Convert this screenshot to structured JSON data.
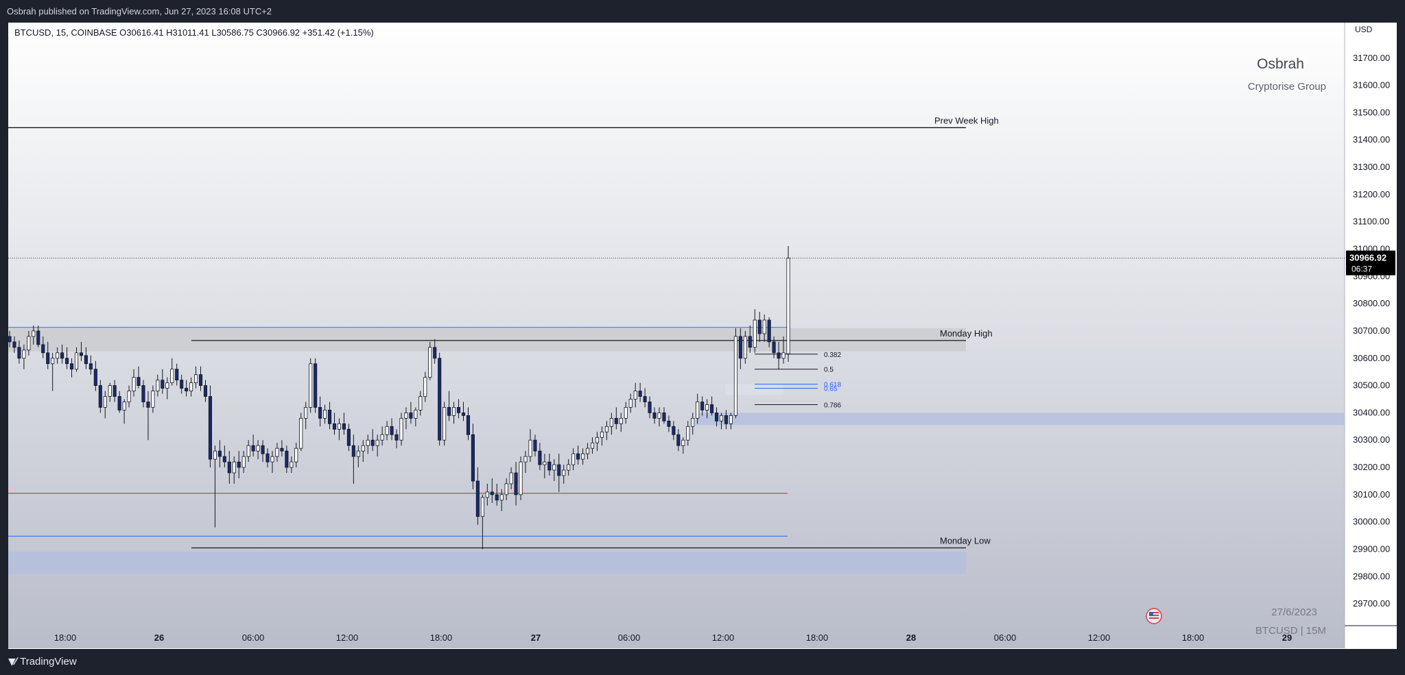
{
  "header": {
    "published": "Osbrah published on TradingView.com, Jun 27, 2023 16:08 UTC+2"
  },
  "footer": {
    "brand": "TradingView",
    "logo_icon": "tradingview-logo-icon"
  },
  "legend": {
    "ohlc": "BTCUSD, 15, COINBASE  O30616.41  H31011.41  L30586.75  C30966.92  +351.42 (+1.15%)"
  },
  "watermark": {
    "author": "Osbrah",
    "group": "Cryptorise Group",
    "date": "27/6/2023",
    "symbol": "BTCUSD | 15M"
  },
  "chart_data": {
    "type": "candlestick",
    "symbol": "BTCUSD",
    "interval": "15",
    "exchange": "COINBASE",
    "currency": "USD",
    "ylim": [
      29620,
      31830
    ],
    "y_ticks": [
      29700,
      29800,
      29900,
      30000,
      30100,
      30200,
      30300,
      30400,
      30500,
      30600,
      30700,
      30800,
      30900,
      31000,
      31100,
      31200,
      31300,
      31400,
      31500,
      31600,
      31700
    ],
    "x_ticks": [
      "18:00",
      "26",
      "06:00",
      "12:00",
      "18:00",
      "27",
      "06:00",
      "12:00",
      "18:00",
      "28",
      "06:00",
      "12:00",
      "18:00",
      "29"
    ],
    "last_price": {
      "value": "30966.92",
      "countdown": "06:37"
    },
    "horizontal_levels": [
      {
        "label": "Prev Week High",
        "price": 31445,
        "color": "#131722"
      },
      {
        "label": "Monday High",
        "price": 30665,
        "color": "#131722"
      },
      {
        "label": "Monday Low",
        "price": 29905,
        "color": "#131722"
      },
      {
        "label": "",
        "price": 30713,
        "color": "#2962ff"
      },
      {
        "label": "",
        "price": 29948,
        "color": "#2962ff"
      },
      {
        "label": "",
        "price": 30105,
        "color": "#b22833"
      }
    ],
    "zones": [
      {
        "top": 30710,
        "bottom": 30625,
        "color": "#c8c9cc"
      },
      {
        "top": 30400,
        "bottom": 30355,
        "color": "#b2bde0"
      },
      {
        "top": 29890,
        "bottom": 29810,
        "color": "#b2bde0"
      },
      {
        "top": 30505,
        "bottom": 30465,
        "color": "#dde0ea"
      }
    ],
    "fibonacci": [
      {
        "label": "0.382",
        "price": 30615
      },
      {
        "label": "0.5",
        "price": 30560
      },
      {
        "label": "0.618",
        "price": 30505
      },
      {
        "label": "0.65",
        "price": 30490
      },
      {
        "label": "0.786",
        "price": 30430
      }
    ],
    "ohlc_series": [
      [
        30680,
        30700,
        30640,
        30660
      ],
      [
        30660,
        30680,
        30620,
        30640
      ],
      [
        30640,
        30665,
        30580,
        30600
      ],
      [
        30600,
        30650,
        30560,
        30630
      ],
      [
        30630,
        30700,
        30610,
        30680
      ],
      [
        30680,
        30720,
        30650,
        30700
      ],
      [
        30700,
        30720,
        30640,
        30650
      ],
      [
        30650,
        30680,
        30600,
        30620
      ],
      [
        30620,
        30660,
        30560,
        30580
      ],
      [
        30580,
        30620,
        30480,
        30600
      ],
      [
        30600,
        30640,
        30580,
        30620
      ],
      [
        30620,
        30650,
        30580,
        30600
      ],
      [
        30600,
        30640,
        30560,
        30580
      ],
      [
        30580,
        30600,
        30530,
        30560
      ],
      [
        30560,
        30640,
        30550,
        30620
      ],
      [
        30620,
        30660,
        30590,
        30610
      ],
      [
        30610,
        30640,
        30560,
        30580
      ],
      [
        30580,
        30610,
        30540,
        30560
      ],
      [
        30560,
        30590,
        30480,
        30500
      ],
      [
        30500,
        30520,
        30400,
        30420
      ],
      [
        30420,
        30480,
        30380,
        30460
      ],
      [
        30460,
        30510,
        30440,
        30500
      ],
      [
        30500,
        30520,
        30440,
        30460
      ],
      [
        30460,
        30480,
        30400,
        30410
      ],
      [
        30410,
        30450,
        30360,
        30440
      ],
      [
        30440,
        30500,
        30420,
        30480
      ],
      [
        30480,
        30560,
        30460,
        30530
      ],
      [
        30530,
        30570,
        30490,
        30500
      ],
      [
        30500,
        30520,
        30420,
        30440
      ],
      [
        30440,
        30480,
        30300,
        30420
      ],
      [
        30420,
        30500,
        30400,
        30480
      ],
      [
        30480,
        30540,
        30460,
        30520
      ],
      [
        30520,
        30560,
        30470,
        30490
      ],
      [
        30490,
        30530,
        30450,
        30510
      ],
      [
        30510,
        30600,
        30500,
        30560
      ],
      [
        30560,
        30580,
        30500,
        30520
      ],
      [
        30520,
        30540,
        30470,
        30490
      ],
      [
        30490,
        30520,
        30460,
        30480
      ],
      [
        30480,
        30530,
        30460,
        30510
      ],
      [
        30510,
        30570,
        30490,
        30540
      ],
      [
        30540,
        30570,
        30480,
        30500
      ],
      [
        30500,
        30520,
        30440,
        30460
      ],
      [
        30460,
        30500,
        30200,
        30230
      ],
      [
        30230,
        30280,
        29980,
        30260
      ],
      [
        30260,
        30300,
        30200,
        30240
      ],
      [
        30240,
        30280,
        30200,
        30220
      ],
      [
        30220,
        30260,
        30140,
        30180
      ],
      [
        30180,
        30240,
        30140,
        30220
      ],
      [
        30220,
        30260,
        30160,
        30200
      ],
      [
        30200,
        30260,
        30180,
        30240
      ],
      [
        30240,
        30300,
        30220,
        30280
      ],
      [
        30280,
        30320,
        30240,
        30260
      ],
      [
        30260,
        30300,
        30230,
        30280
      ],
      [
        30280,
        30300,
        30220,
        30250
      ],
      [
        30250,
        30270,
        30200,
        30220
      ],
      [
        30220,
        30260,
        30180,
        30240
      ],
      [
        30240,
        30290,
        30220,
        30270
      ],
      [
        30270,
        30300,
        30240,
        30260
      ],
      [
        30260,
        30280,
        30180,
        30200
      ],
      [
        30200,
        30240,
        30180,
        30220
      ],
      [
        30220,
        30290,
        30200,
        30270
      ],
      [
        30270,
        30400,
        30260,
        30380
      ],
      [
        30380,
        30440,
        30340,
        30420
      ],
      [
        30420,
        30600,
        30400,
        30580
      ],
      [
        30580,
        30600,
        30400,
        30420
      ],
      [
        30420,
        30460,
        30350,
        30380
      ],
      [
        30380,
        30430,
        30360,
        30410
      ],
      [
        30410,
        30440,
        30340,
        30360
      ],
      [
        30360,
        30400,
        30320,
        30340
      ],
      [
        30340,
        30380,
        30300,
        30360
      ],
      [
        30360,
        30400,
        30320,
        30340
      ],
      [
        30340,
        30360,
        30260,
        30280
      ],
      [
        30280,
        30320,
        30140,
        30240
      ],
      [
        30240,
        30280,
        30200,
        30260
      ],
      [
        30260,
        30300,
        30220,
        30280
      ],
      [
        30280,
        30320,
        30250,
        30300
      ],
      [
        30300,
        30340,
        30260,
        30280
      ],
      [
        30280,
        30320,
        30240,
        30300
      ],
      [
        30300,
        30350,
        30280,
        30320
      ],
      [
        30320,
        30370,
        30300,
        30350
      ],
      [
        30350,
        30380,
        30300,
        30320
      ],
      [
        30320,
        30340,
        30270,
        30300
      ],
      [
        30300,
        30400,
        30280,
        30380
      ],
      [
        30380,
        30420,
        30340,
        30400
      ],
      [
        30400,
        30440,
        30360,
        30380
      ],
      [
        30380,
        30420,
        30350,
        30410
      ],
      [
        30410,
        30480,
        30390,
        30460
      ],
      [
        30460,
        30550,
        30440,
        30530
      ],
      [
        30530,
        30660,
        30520,
        30640
      ],
      [
        30640,
        30670,
        30580,
        30600
      ],
      [
        30600,
        30620,
        30280,
        30300
      ],
      [
        30300,
        30440,
        30280,
        30420
      ],
      [
        30420,
        30480,
        30370,
        30390
      ],
      [
        30390,
        30440,
        30360,
        30420
      ],
      [
        30420,
        30450,
        30380,
        30400
      ],
      [
        30400,
        30440,
        30370,
        30390
      ],
      [
        30390,
        30420,
        30300,
        30320
      ],
      [
        30320,
        30360,
        30120,
        30150
      ],
      [
        30150,
        30200,
        29990,
        30020
      ],
      [
        30020,
        30100,
        29900,
        30090
      ],
      [
        30090,
        30140,
        30060,
        30110
      ],
      [
        30110,
        30160,
        30070,
        30100
      ],
      [
        30100,
        30140,
        30060,
        30080
      ],
      [
        30080,
        30120,
        30040,
        30100
      ],
      [
        30100,
        30160,
        30080,
        30140
      ],
      [
        30140,
        30200,
        30120,
        30180
      ],
      [
        30180,
        30220,
        30060,
        30100
      ],
      [
        30100,
        30240,
        30080,
        30220
      ],
      [
        30220,
        30260,
        30180,
        30240
      ],
      [
        30240,
        30340,
        30220,
        30300
      ],
      [
        30300,
        30320,
        30240,
        30260
      ],
      [
        30260,
        30290,
        30190,
        30210
      ],
      [
        30210,
        30250,
        30160,
        30220
      ],
      [
        30220,
        30250,
        30170,
        30190
      ],
      [
        30190,
        30230,
        30150,
        30210
      ],
      [
        30210,
        30250,
        30110,
        30170
      ],
      [
        30170,
        30210,
        30140,
        30190
      ],
      [
        30190,
        30230,
        30170,
        30210
      ],
      [
        30210,
        30270,
        30190,
        30250
      ],
      [
        30250,
        30280,
        30210,
        30230
      ],
      [
        30230,
        30270,
        30210,
        30250
      ],
      [
        30250,
        30290,
        30230,
        30270
      ],
      [
        30270,
        30310,
        30250,
        30290
      ],
      [
        30290,
        30330,
        30260,
        30310
      ],
      [
        30310,
        30350,
        30280,
        30330
      ],
      [
        30330,
        30370,
        30300,
        30350
      ],
      [
        30350,
        30400,
        30320,
        30380
      ],
      [
        30380,
        30420,
        30340,
        30360
      ],
      [
        30360,
        30400,
        30330,
        30380
      ],
      [
        30380,
        30440,
        30360,
        30420
      ],
      [
        30420,
        30470,
        30400,
        30450
      ],
      [
        30450,
        30510,
        30420,
        30480
      ],
      [
        30480,
        30510,
        30440,
        30460
      ],
      [
        30460,
        30490,
        30420,
        30440
      ],
      [
        30440,
        30460,
        30380,
        30400
      ],
      [
        30400,
        30420,
        30360,
        30380
      ],
      [
        30380,
        30420,
        30350,
        30400
      ],
      [
        30400,
        30420,
        30360,
        30370
      ],
      [
        30370,
        30390,
        30330,
        30350
      ],
      [
        30350,
        30370,
        30300,
        30320
      ],
      [
        30320,
        30340,
        30260,
        30280
      ],
      [
        30280,
        30310,
        30250,
        30300
      ],
      [
        30300,
        30370,
        30280,
        30350
      ],
      [
        30350,
        30400,
        30320,
        30380
      ],
      [
        30380,
        30470,
        30360,
        30440
      ],
      [
        30440,
        30460,
        30390,
        30410
      ],
      [
        30410,
        30450,
        30380,
        30430
      ],
      [
        30430,
        30460,
        30390,
        30400
      ],
      [
        30400,
        30420,
        30350,
        30370
      ],
      [
        30370,
        30400,
        30340,
        30390
      ],
      [
        30390,
        30410,
        30340,
        30360
      ],
      [
        30360,
        30400,
        30340,
        30390
      ],
      [
        30390,
        30710,
        30380,
        30680
      ],
      [
        30680,
        30710,
        30560,
        30600
      ],
      [
        30600,
        30700,
        30580,
        30680
      ],
      [
        30680,
        30720,
        30620,
        30640
      ],
      [
        30640,
        30780,
        30620,
        30740
      ],
      [
        30740,
        30770,
        30660,
        30690
      ],
      [
        30690,
        30760,
        30660,
        30740
      ],
      [
        30740,
        30750,
        30640,
        30660
      ],
      [
        30660,
        30680,
        30600,
        30620
      ],
      [
        30620,
        30660,
        30560,
        30600
      ],
      [
        30600,
        30680,
        30580,
        30620
      ],
      [
        30616.41,
        31011.41,
        30586.75,
        30966.92
      ]
    ]
  }
}
